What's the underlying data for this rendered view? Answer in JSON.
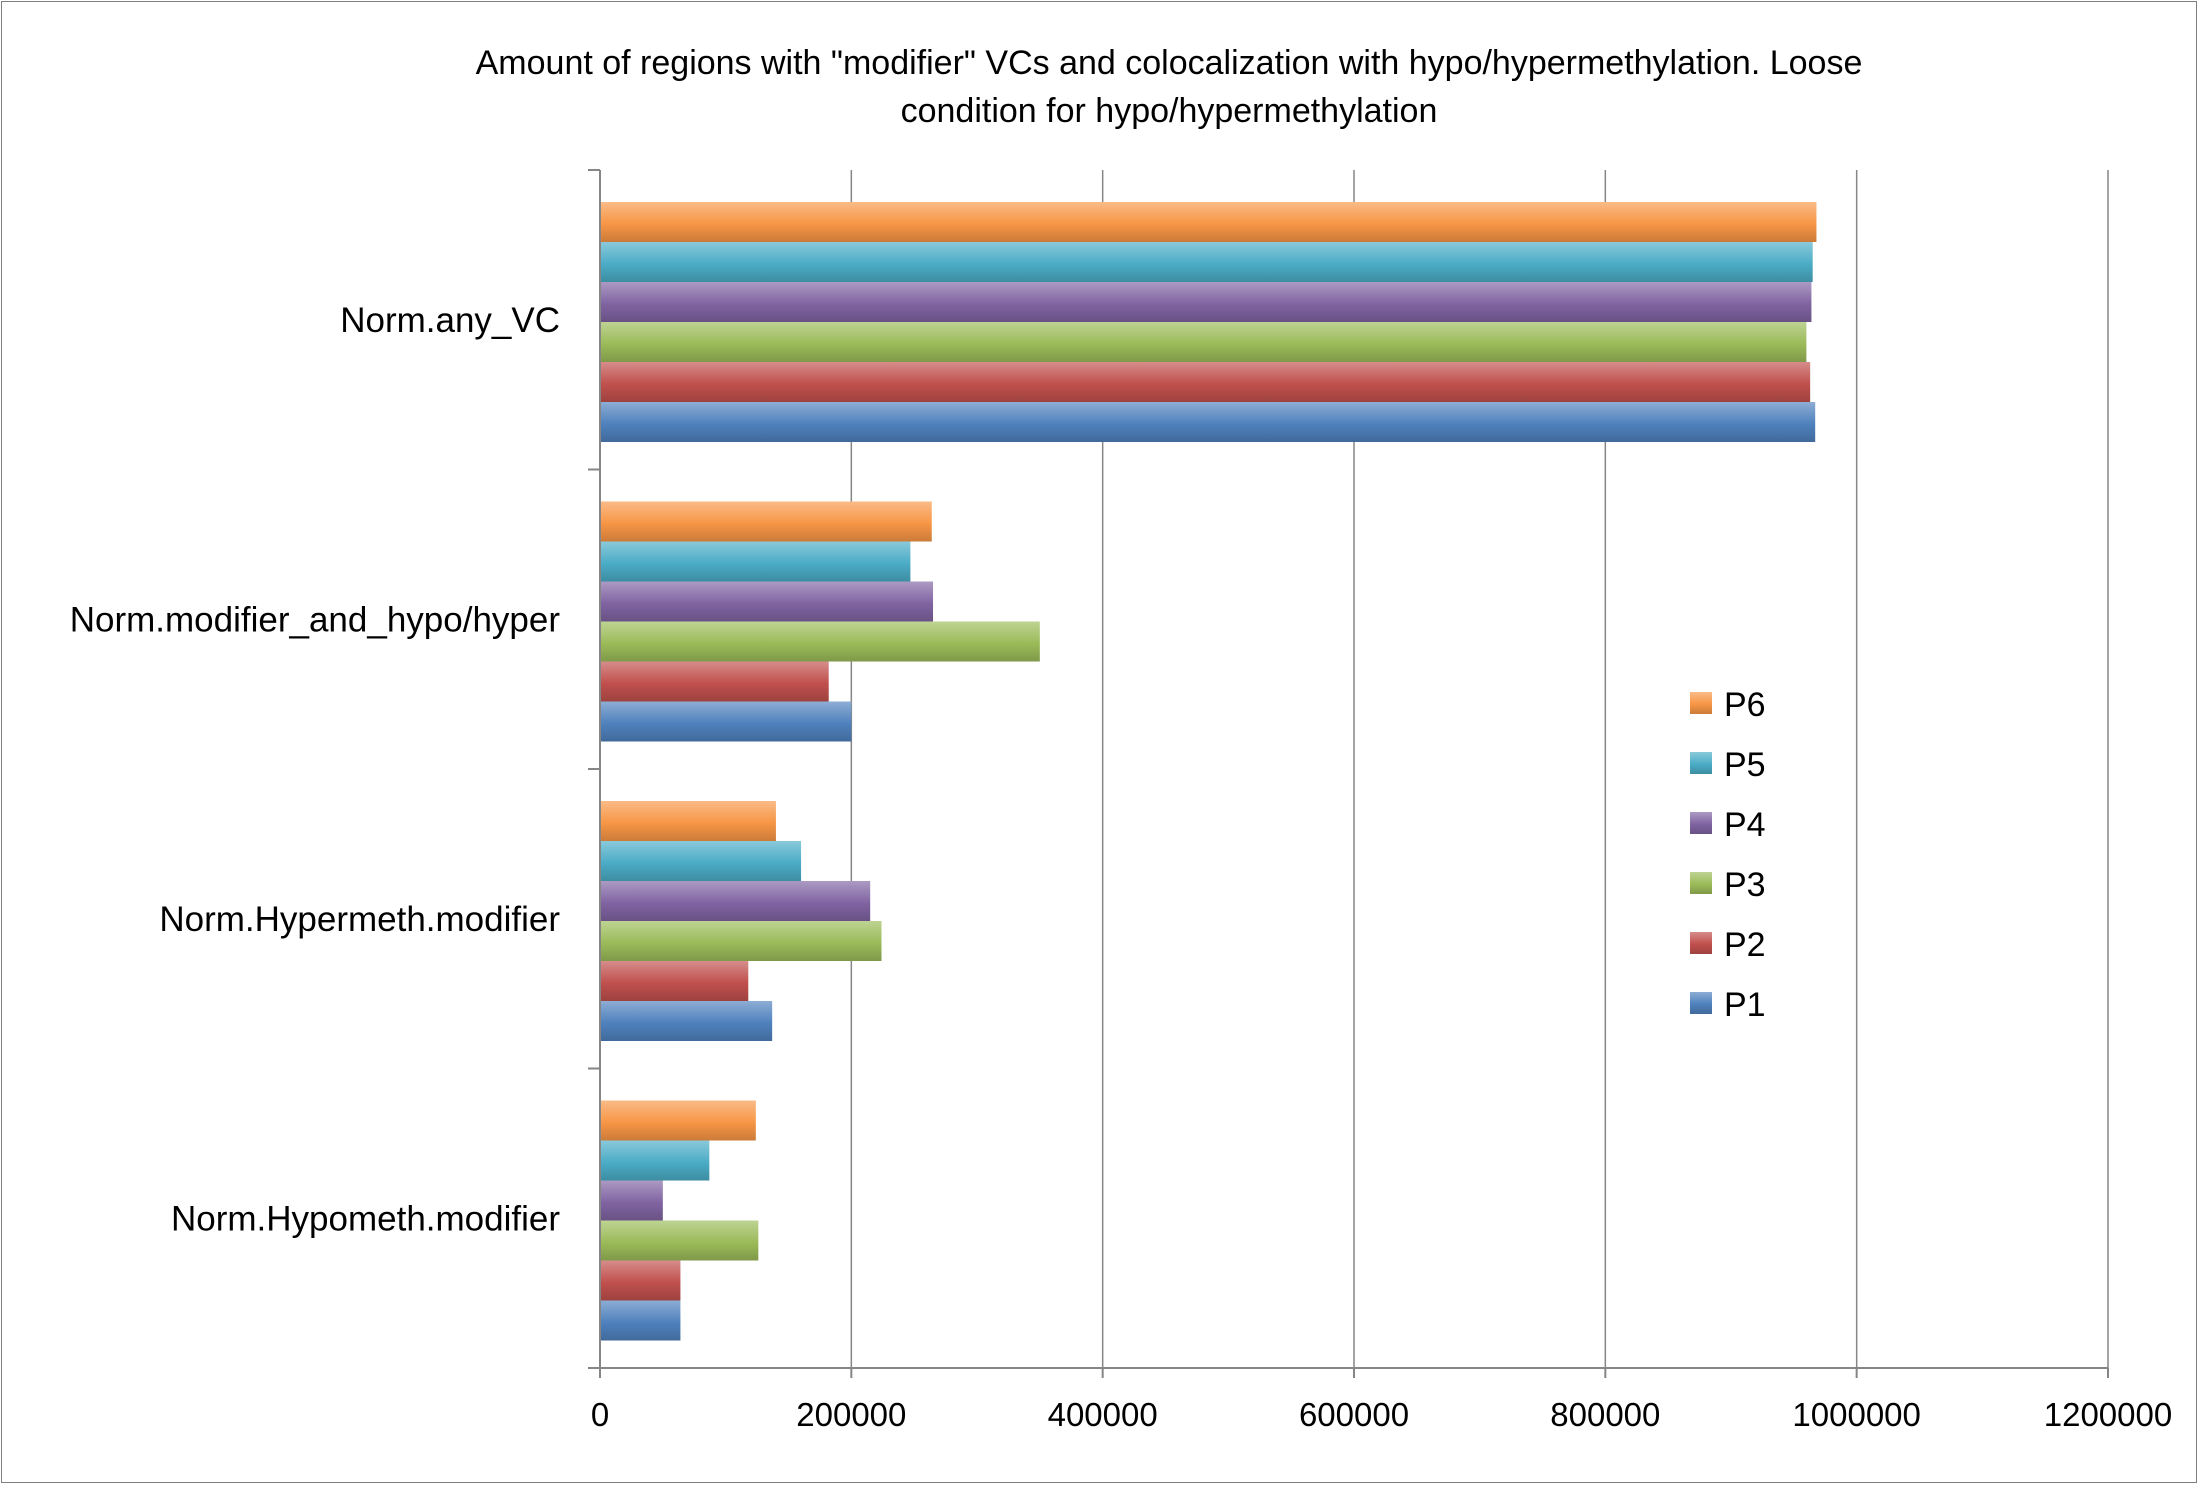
{
  "chart_data": {
    "type": "bar",
    "orientation": "horizontal",
    "title": "Amount of regions with \"modifier\" VCs and colocalization with hypo/hypermethylation. Loose condition for hypo/hypermethylation",
    "title_lines": [
      "Amount of regions with \"modifier\" VCs and colocalization with hypo/hypermethylation. Loose",
      "condition for hypo/hypermethylation"
    ],
    "categories": [
      "Norm.any_VC",
      "Norm.modifier_and_hypo/hyper",
      "Norm.Hypermeth.modifier",
      "Norm.Hypometh.modifier"
    ],
    "series": [
      {
        "name": "P6",
        "color": "#f79646",
        "values": [
          968000,
          264000,
          140000,
          124000
        ]
      },
      {
        "name": "P5",
        "color": "#4bacc6",
        "values": [
          965000,
          247000,
          160000,
          87000
        ]
      },
      {
        "name": "P4",
        "color": "#8064a2",
        "values": [
          964000,
          265000,
          215000,
          50000
        ]
      },
      {
        "name": "P3",
        "color": "#9bbb59",
        "values": [
          960000,
          350000,
          224000,
          126000
        ]
      },
      {
        "name": "P2",
        "color": "#c0504d",
        "values": [
          963000,
          182000,
          118000,
          64000
        ]
      },
      {
        "name": "P1",
        "color": "#4f81bd",
        "values": [
          967000,
          200000,
          137000,
          64000
        ]
      }
    ],
    "legend_order": [
      "P6",
      "P5",
      "P4",
      "P3",
      "P2",
      "P1"
    ],
    "xlim": [
      0,
      1200000
    ],
    "x_ticks": [
      0,
      200000,
      400000,
      600000,
      800000,
      1000000,
      1200000
    ],
    "x_tick_labels": [
      "0",
      "200000",
      "400000",
      "600000",
      "800000",
      "1000000",
      "1200000"
    ],
    "grid": "vertical major gridlines",
    "legend_position": "right"
  }
}
